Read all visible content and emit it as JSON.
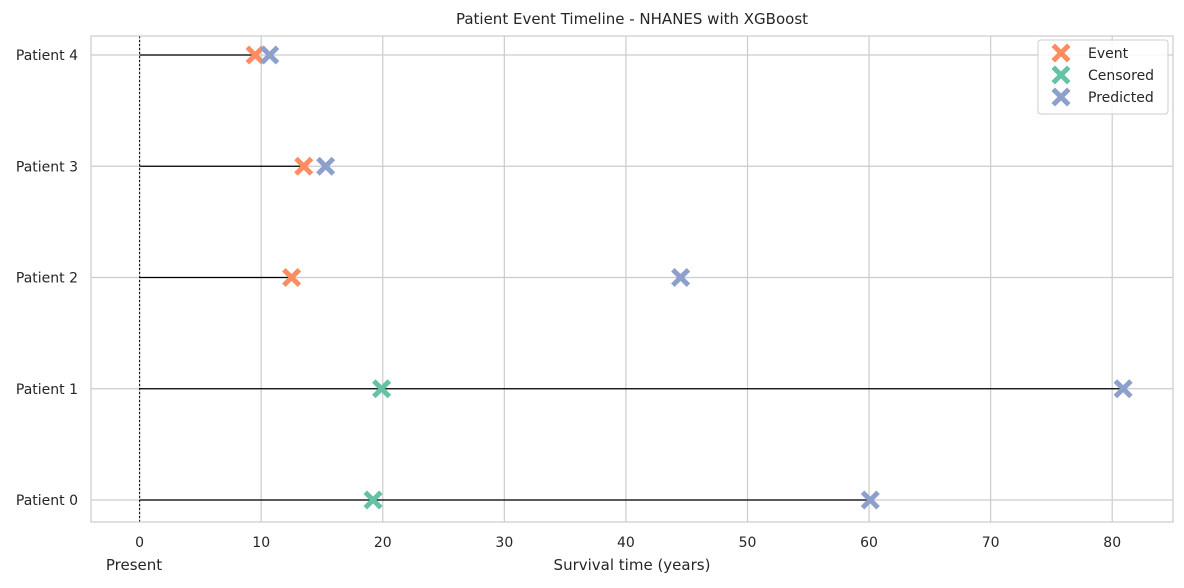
{
  "chart_data": {
    "type": "scatter",
    "title": "Patient Event Timeline - NHANES with XGBoost",
    "xlabel": "Survival time (years)",
    "x_origin_label": "Present",
    "xlim": [
      -4,
      85
    ],
    "xticks": [
      0,
      10,
      20,
      30,
      40,
      50,
      60,
      70,
      80
    ],
    "grid": true,
    "legend_position": "top-right",
    "categories": [
      "Patient 0",
      "Patient 1",
      "Patient 2",
      "Patient 3",
      "Patient 4"
    ],
    "series": [
      {
        "name": "Event",
        "color": "#fc8d62",
        "marker": "x",
        "points": [
          {
            "x": 12.5,
            "y": "Patient 2"
          },
          {
            "x": 13.5,
            "y": "Patient 3"
          },
          {
            "x": 9.5,
            "y": "Patient 4"
          }
        ]
      },
      {
        "name": "Censored",
        "color": "#66c2a5",
        "marker": "x",
        "points": [
          {
            "x": 19.2,
            "y": "Patient 0"
          },
          {
            "x": 19.9,
            "y": "Patient 1"
          }
        ]
      },
      {
        "name": "Predicted",
        "color": "#8da0cb",
        "marker": "x",
        "points": [
          {
            "x": 60.1,
            "y": "Patient 0"
          },
          {
            "x": 80.9,
            "y": "Patient 1"
          },
          {
            "x": 44.5,
            "y": "Patient 2"
          },
          {
            "x": 15.3,
            "y": "Patient 3"
          },
          {
            "x": 10.7,
            "y": "Patient 4"
          }
        ]
      }
    ],
    "timelines": [
      {
        "patient": "Patient 0",
        "end": 60.1
      },
      {
        "patient": "Patient 1",
        "end": 80.9
      },
      {
        "patient": "Patient 2",
        "end": 12.5
      },
      {
        "patient": "Patient 3",
        "end": 13.5
      },
      {
        "patient": "Patient 4",
        "end": 9.5
      }
    ],
    "reference_line_x": 0,
    "colors": {
      "grid": "#cccccc",
      "spine": "#cccccc",
      "timeline": "#000000"
    }
  }
}
